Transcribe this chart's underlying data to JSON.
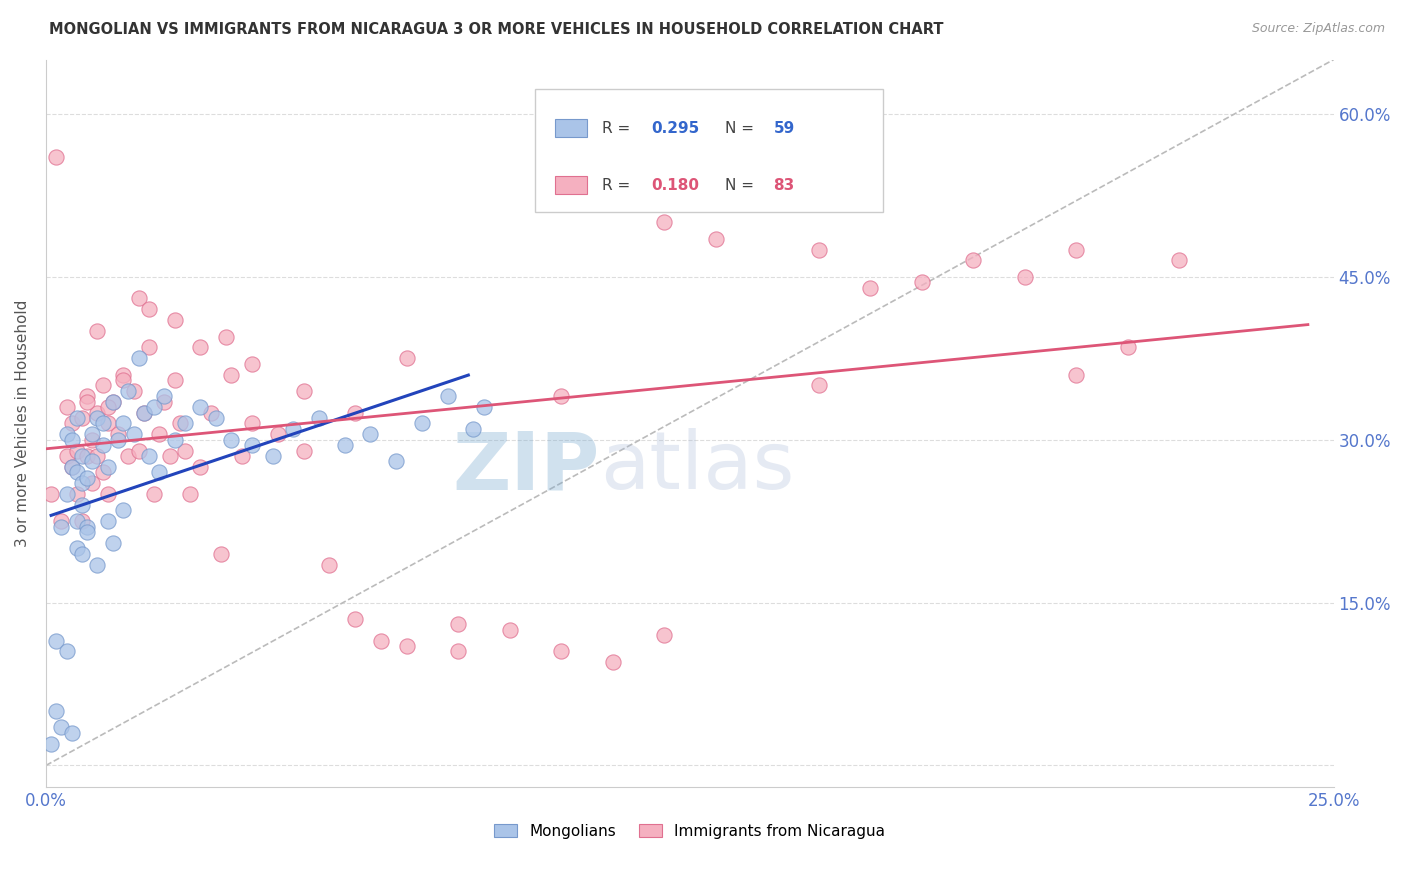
{
  "title": "MONGOLIAN VS IMMIGRANTS FROM NICARAGUA 3 OR MORE VEHICLES IN HOUSEHOLD CORRELATION CHART",
  "source": "Source: ZipAtlas.com",
  "ylabel": "3 or more Vehicles in Household",
  "xlim": [
    0.0,
    0.25
  ],
  "ylim": [
    -0.02,
    0.65
  ],
  "x_ticks": [
    0.0,
    0.05,
    0.1,
    0.15,
    0.2,
    0.25
  ],
  "x_tick_labels": [
    "0.0%",
    "",
    "",
    "",
    "",
    "25.0%"
  ],
  "y_ticks": [
    0.0,
    0.15,
    0.3,
    0.45,
    0.6
  ],
  "y_tick_labels_right": [
    "",
    "15.0%",
    "30.0%",
    "45.0%",
    "60.0%"
  ],
  "mongolian_color": "#aac4e8",
  "nicaragua_color": "#f5b0c0",
  "mongolian_edge": "#7799cc",
  "nicaragua_edge": "#e07090",
  "regression_blue": "#2244bb",
  "regression_pink": "#dd5577",
  "diag_color": "#bbbbbb",
  "watermark_zip": "#8ab0d8",
  "watermark_atlas": "#b0c8e8",
  "background_color": "#ffffff",
  "tick_color": "#5577cc",
  "legend_box_color": "#cccccc",
  "mongolian_x": [
    0.001,
    0.002,
    0.002,
    0.003,
    0.003,
    0.004,
    0.004,
    0.004,
    0.005,
    0.005,
    0.005,
    0.006,
    0.006,
    0.006,
    0.006,
    0.007,
    0.007,
    0.007,
    0.007,
    0.008,
    0.008,
    0.008,
    0.009,
    0.009,
    0.01,
    0.01,
    0.011,
    0.011,
    0.012,
    0.012,
    0.013,
    0.013,
    0.014,
    0.015,
    0.015,
    0.016,
    0.017,
    0.018,
    0.019,
    0.02,
    0.021,
    0.022,
    0.023,
    0.025,
    0.027,
    0.03,
    0.033,
    0.036,
    0.04,
    0.044,
    0.048,
    0.053,
    0.058,
    0.063,
    0.068,
    0.073,
    0.078,
    0.083,
    0.085
  ],
  "mongolian_y": [
    0.02,
    0.115,
    0.05,
    0.035,
    0.22,
    0.105,
    0.25,
    0.305,
    0.03,
    0.275,
    0.3,
    0.27,
    0.225,
    0.2,
    0.32,
    0.285,
    0.24,
    0.195,
    0.26,
    0.265,
    0.22,
    0.215,
    0.305,
    0.28,
    0.32,
    0.185,
    0.295,
    0.315,
    0.275,
    0.225,
    0.335,
    0.205,
    0.3,
    0.315,
    0.235,
    0.345,
    0.305,
    0.375,
    0.325,
    0.285,
    0.33,
    0.27,
    0.34,
    0.3,
    0.315,
    0.33,
    0.32,
    0.3,
    0.295,
    0.285,
    0.31,
    0.32,
    0.295,
    0.305,
    0.28,
    0.315,
    0.34,
    0.31,
    0.33
  ],
  "nicaragua_x": [
    0.001,
    0.002,
    0.003,
    0.004,
    0.004,
    0.005,
    0.005,
    0.006,
    0.006,
    0.007,
    0.007,
    0.008,
    0.008,
    0.009,
    0.009,
    0.01,
    0.01,
    0.011,
    0.011,
    0.012,
    0.012,
    0.013,
    0.014,
    0.015,
    0.016,
    0.017,
    0.018,
    0.019,
    0.02,
    0.021,
    0.022,
    0.023,
    0.024,
    0.025,
    0.026,
    0.027,
    0.028,
    0.03,
    0.032,
    0.034,
    0.036,
    0.038,
    0.04,
    0.045,
    0.05,
    0.055,
    0.06,
    0.065,
    0.07,
    0.08,
    0.09,
    0.1,
    0.11,
    0.12,
    0.13,
    0.14,
    0.15,
    0.16,
    0.17,
    0.18,
    0.19,
    0.2,
    0.21,
    0.22,
    0.008,
    0.01,
    0.012,
    0.015,
    0.018,
    0.02,
    0.025,
    0.03,
    0.035,
    0.04,
    0.05,
    0.06,
    0.07,
    0.08,
    0.1,
    0.12,
    0.15,
    0.2
  ],
  "nicaragua_y": [
    0.25,
    0.56,
    0.225,
    0.285,
    0.33,
    0.275,
    0.315,
    0.25,
    0.29,
    0.32,
    0.225,
    0.285,
    0.34,
    0.3,
    0.26,
    0.285,
    0.325,
    0.35,
    0.27,
    0.315,
    0.25,
    0.335,
    0.305,
    0.36,
    0.285,
    0.345,
    0.29,
    0.325,
    0.385,
    0.25,
    0.305,
    0.335,
    0.285,
    0.355,
    0.315,
    0.29,
    0.25,
    0.275,
    0.325,
    0.195,
    0.36,
    0.285,
    0.315,
    0.305,
    0.29,
    0.185,
    0.135,
    0.115,
    0.375,
    0.13,
    0.125,
    0.105,
    0.095,
    0.5,
    0.485,
    0.525,
    0.475,
    0.44,
    0.445,
    0.465,
    0.45,
    0.475,
    0.385,
    0.465,
    0.335,
    0.4,
    0.33,
    0.355,
    0.43,
    0.42,
    0.41,
    0.385,
    0.395,
    0.37,
    0.345,
    0.325,
    0.11,
    0.105,
    0.34,
    0.12,
    0.35,
    0.36
  ]
}
